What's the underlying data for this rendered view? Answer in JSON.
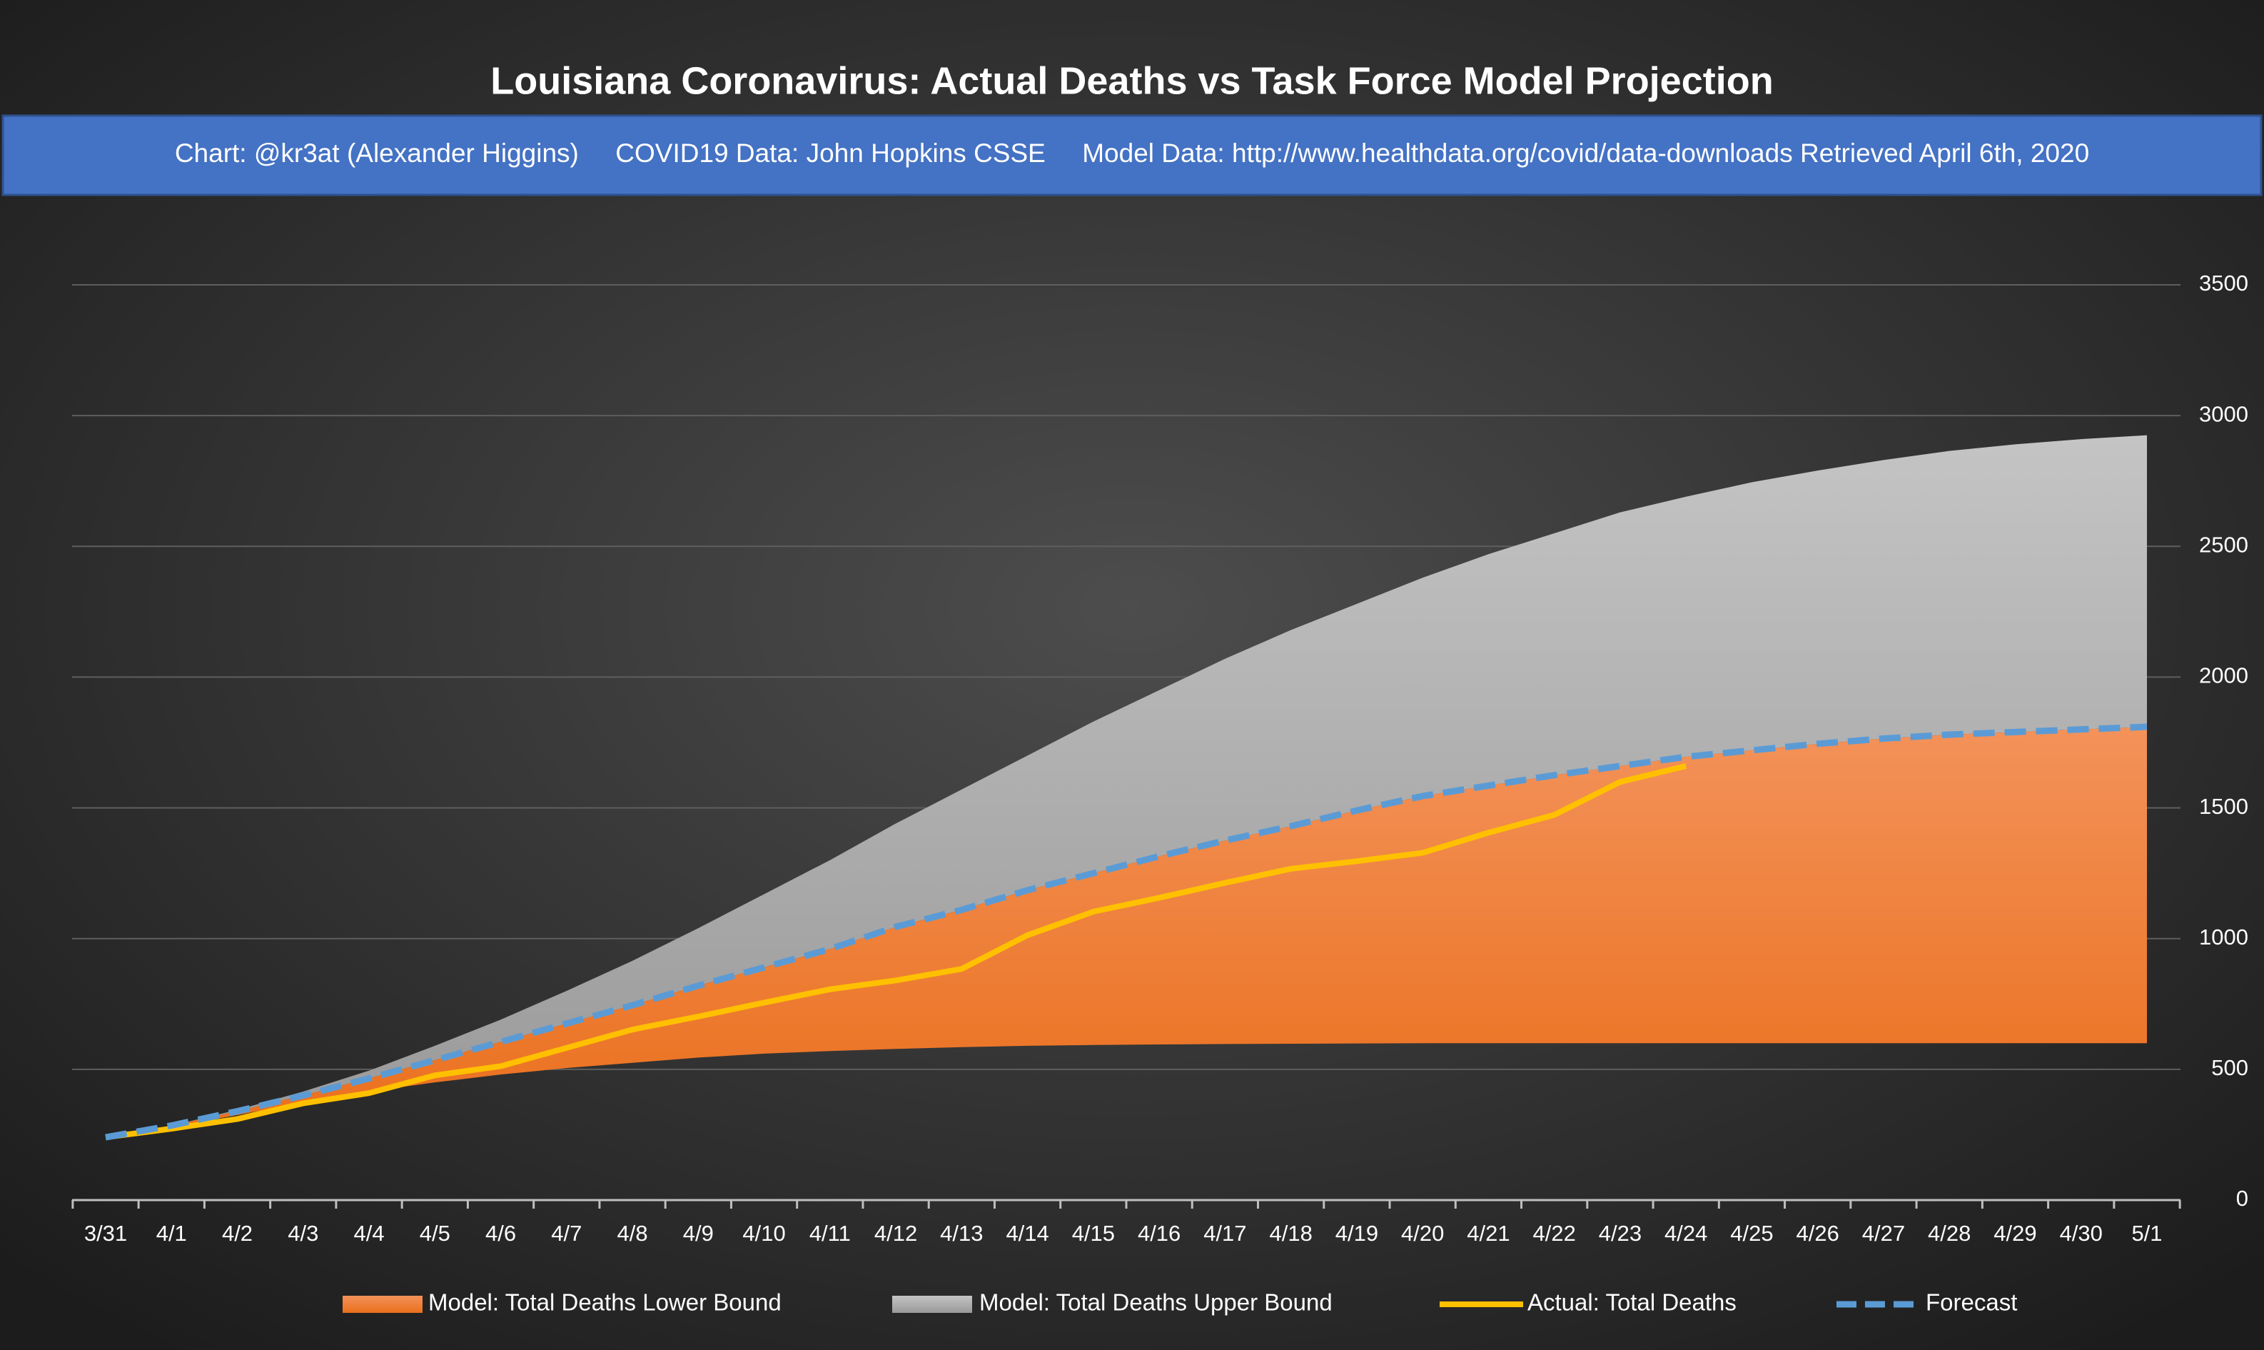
{
  "chart_data": {
    "type": "line",
    "title": "Louisiana Coronavirus: Actual Deaths vs Task Force Model Projection",
    "subtitle": "Chart: @kr3at (Alexander Higgins)     COVID19 Data: John Hopkins CSSE     Model Data: http://www.healthdata.org/covid/data-downloads Retrieved April 6th, 2020",
    "categories": [
      "3/31",
      "4/1",
      "4/2",
      "4/3",
      "4/4",
      "4/5",
      "4/6",
      "4/7",
      "4/8",
      "4/9",
      "4/10",
      "4/11",
      "4/12",
      "4/13",
      "4/14",
      "4/15",
      "4/16",
      "4/17",
      "4/18",
      "4/19",
      "4/20",
      "4/21",
      "4/22",
      "4/23",
      "4/24",
      "4/25",
      "4/26",
      "4/27",
      "4/28",
      "4/29",
      "4/30",
      "5/1"
    ],
    "series": [
      {
        "name": "Model: Total Deaths Lower Bound",
        "color": "#ee7a2c",
        "values": [
          240,
          280,
          325,
          375,
          415,
          450,
          480,
          505,
          525,
          545,
          560,
          570,
          578,
          585,
          590,
          593,
          595,
          597,
          598,
          599,
          600,
          600,
          600,
          600,
          600,
          600,
          600,
          600,
          600,
          600,
          600,
          600
        ]
      },
      {
        "name": "Model: Total Deaths Upper Bound",
        "color": "#b0b0b0",
        "values": [
          240,
          285,
          345,
          415,
          495,
          590,
          690,
          800,
          915,
          1040,
          1170,
          1300,
          1440,
          1570,
          1700,
          1830,
          1950,
          2070,
          2180,
          2280,
          2380,
          2470,
          2550,
          2630,
          2690,
          2745,
          2790,
          2830,
          2865,
          2890,
          2910,
          2925
        ]
      },
      {
        "name": "Actual: Total Deaths",
        "color": "#ffc000",
        "values": [
          240,
          273,
          310,
          370,
          409,
          477,
          512,
          582,
          652,
          702,
          755,
          806,
          840,
          884,
          1013,
          1103,
          1156,
          1213,
          1267,
          1296,
          1328,
          1405,
          1473,
          1599,
          1660,
          null,
          null,
          null,
          null,
          null,
          null,
          null
        ]
      },
      {
        "name": "Forecast",
        "color": "#5b9bd5",
        "dashed": true,
        "values": [
          240,
          285,
          340,
          400,
          465,
          535,
          605,
          675,
          745,
          820,
          890,
          960,
          1045,
          1110,
          1185,
          1250,
          1315,
          1375,
          1430,
          1490,
          1545,
          1585,
          1625,
          1660,
          1695,
          1720,
          1745,
          1765,
          1780,
          1790,
          1800,
          1810
        ]
      }
    ],
    "ylim": [
      0,
      3500
    ],
    "yticks": [
      0,
      500,
      1000,
      1500,
      2000,
      2500,
      3000,
      3500
    ],
    "grid": true,
    "legend": "bottom"
  }
}
